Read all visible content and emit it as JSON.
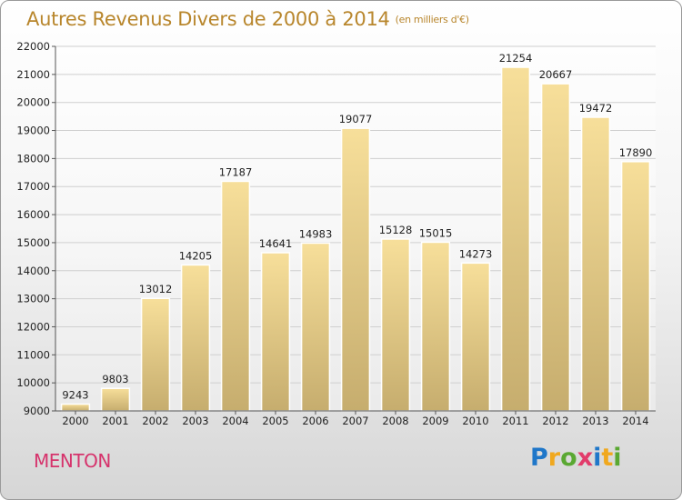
{
  "header": {
    "title": "Autres Revenus Divers de 2000 à 2014",
    "unit": "(en milliers d'€)"
  },
  "footer": {
    "city": "MENTON",
    "logo_letters": [
      "P",
      "r",
      "o",
      "x",
      "i",
      "t",
      "i"
    ]
  },
  "colors": {
    "title": "#b8862c",
    "city": "#d6336c",
    "bar_top": "#f7df9a",
    "bar_bottom": "#c6ad6e",
    "grid": "#cfcfcf"
  },
  "chart_data": {
    "type": "bar",
    "title": "Autres Revenus Divers de 2000 à 2014",
    "xlabel": "",
    "ylabel": "",
    "categories": [
      "2000",
      "2001",
      "2002",
      "2003",
      "2004",
      "2005",
      "2006",
      "2007",
      "2008",
      "2009",
      "2010",
      "2011",
      "2012",
      "2013",
      "2014"
    ],
    "values": [
      9243,
      9803,
      13012,
      14205,
      17187,
      14641,
      14983,
      19077,
      15128,
      15015,
      14273,
      21254,
      20667,
      19472,
      17890
    ],
    "value_labels": [
      "9243",
      "9803",
      "13012",
      "14205",
      "17187",
      "14641",
      "14983",
      "19077",
      "15128",
      "15015",
      "14273",
      "21254",
      "20667",
      "19472",
      "17890"
    ],
    "ylim": [
      9000,
      22000
    ],
    "yticks": [
      9000,
      10000,
      11000,
      12000,
      13000,
      14000,
      15000,
      16000,
      17000,
      18000,
      19000,
      20000,
      21000,
      22000
    ],
    "ytick_labels": [
      "9000",
      "10000",
      "11000",
      "12000",
      "13000",
      "14000",
      "15000",
      "16000",
      "17000",
      "18000",
      "19000",
      "20000",
      "21000",
      "22000"
    ],
    "grid": true,
    "legend": "none"
  }
}
